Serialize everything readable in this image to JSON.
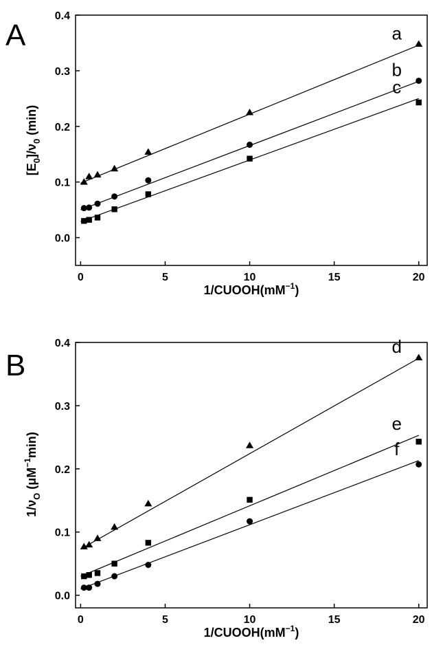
{
  "chart_data": [
    {
      "panel": "A",
      "type": "scatter",
      "xlabel": "1/CUOOH(mM⁻¹)",
      "ylabel": "[E0]/v0 (min)",
      "ylabel_parts": {
        "pre": "[E",
        "sub1": "0",
        "mid": "]/ν",
        "sub2": "0",
        "post": " (min)"
      },
      "xlabel_parts": {
        "pre": "1/CUOOH",
        "unit": "(mM",
        "sup": "−1",
        "close": ")"
      },
      "xlim": [
        -0.3,
        20.5
      ],
      "ylim": [
        -0.05,
        0.4
      ],
      "xticks": [
        0,
        5,
        10,
        15,
        20
      ],
      "xtick_labels": [
        "0",
        "5",
        "10",
        "15",
        "20"
      ],
      "yticks": [
        0.0,
        0.1,
        0.2,
        0.3,
        0.4
      ],
      "ytick_labels": [
        "0.0",
        "0.1",
        "0.2",
        "0.3",
        "0.4"
      ],
      "series": [
        {
          "name": "a",
          "marker": "triangle",
          "x": [
            0.2,
            0.5,
            1,
            2,
            4,
            10,
            20
          ],
          "y": [
            0.1,
            0.11,
            0.113,
            0.124,
            0.154,
            0.225,
            0.348
          ],
          "fit": {
            "x": [
              0,
              20
            ],
            "y": [
              0.098,
              0.346
            ]
          }
        },
        {
          "name": "b",
          "marker": "circle",
          "x": [
            0.2,
            0.5,
            1,
            2,
            4,
            10,
            20
          ],
          "y": [
            0.053,
            0.054,
            0.061,
            0.074,
            0.103,
            0.167,
            0.282
          ],
          "fit": {
            "x": [
              0,
              20
            ],
            "y": [
              0.05,
              0.281
            ]
          }
        },
        {
          "name": "c",
          "marker": "square",
          "x": [
            0.2,
            0.5,
            1,
            2,
            4,
            10,
            20
          ],
          "y": [
            0.03,
            0.032,
            0.036,
            0.051,
            0.078,
            0.142,
            0.243
          ],
          "fit": {
            "x": [
              0,
              20
            ],
            "y": [
              0.029,
              0.25
            ]
          }
        }
      ],
      "grid": false
    },
    {
      "panel": "B",
      "type": "scatter",
      "xlabel": "1/CUOOH(mM⁻¹)",
      "ylabel": "1/vo (μM⁻¹min)",
      "ylabel_parts": {
        "pre": "1/ν",
        "sub1": "O",
        "mid": " (μM",
        "sup": "−1",
        "post": "min)"
      },
      "xlabel_parts": {
        "pre": "1/CUOOH",
        "unit": "(mM",
        "sup": "−1",
        "close": ")"
      },
      "xlim": [
        -0.3,
        20.5
      ],
      "ylim": [
        -0.02,
        0.4
      ],
      "xticks": [
        0,
        5,
        10,
        15,
        20
      ],
      "xtick_labels": [
        "0",
        "5",
        "10",
        "15",
        "20"
      ],
      "yticks": [
        0.0,
        0.1,
        0.2,
        0.3,
        0.4
      ],
      "ytick_labels": [
        "0.0",
        "0.1",
        "0.2",
        "0.3",
        "0.4"
      ],
      "series": [
        {
          "name": "d",
          "marker": "triangle",
          "x": [
            0.2,
            0.5,
            1,
            2,
            4,
            10,
            20
          ],
          "y": [
            0.077,
            0.08,
            0.09,
            0.108,
            0.145,
            0.237,
            0.376
          ],
          "fit": {
            "x": [
              0,
              20
            ],
            "y": [
              0.073,
              0.375
            ]
          }
        },
        {
          "name": "e",
          "marker": "square",
          "x": [
            0.2,
            0.5,
            1,
            2,
            4,
            10,
            20
          ],
          "y": [
            0.03,
            0.032,
            0.035,
            0.05,
            0.083,
            0.151,
            0.243
          ],
          "fit": {
            "x": [
              0,
              20
            ],
            "y": [
              0.03,
              0.253
            ]
          }
        },
        {
          "name": "f",
          "marker": "circle",
          "x": [
            0.2,
            0.5,
            1,
            2,
            4,
            10,
            20
          ],
          "y": [
            0.012,
            0.012,
            0.018,
            0.03,
            0.048,
            0.117,
            0.207
          ],
          "fit": {
            "x": [
              0,
              20
            ],
            "y": [
              0.01,
              0.213
            ]
          }
        }
      ],
      "grid": false
    }
  ]
}
